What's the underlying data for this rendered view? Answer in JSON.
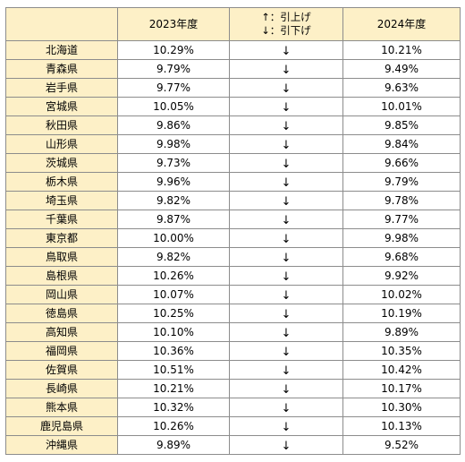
{
  "header": {
    "pref": "",
    "year_2023": "2023年度",
    "direction_up": "↑：引上げ",
    "direction_down": "↓：引下げ",
    "year_2024": "2024年度"
  },
  "rows": [
    {
      "prefecture": "北海道",
      "rate_2023": "10.29%",
      "arrow": "↓",
      "rate_2024": "10.21%"
    },
    {
      "prefecture": "青森県",
      "rate_2023": "9.79%",
      "arrow": "↓",
      "rate_2024": "9.49%"
    },
    {
      "prefecture": "岩手県",
      "rate_2023": "9.77%",
      "arrow": "↓",
      "rate_2024": "9.63%"
    },
    {
      "prefecture": "宮城県",
      "rate_2023": "10.05%",
      "arrow": "↓",
      "rate_2024": "10.01%"
    },
    {
      "prefecture": "秋田県",
      "rate_2023": "9.86%",
      "arrow": "↓",
      "rate_2024": "9.85%"
    },
    {
      "prefecture": "山形県",
      "rate_2023": "9.98%",
      "arrow": "↓",
      "rate_2024": "9.84%"
    },
    {
      "prefecture": "茨城県",
      "rate_2023": "9.73%",
      "arrow": "↓",
      "rate_2024": "9.66%"
    },
    {
      "prefecture": "栃木県",
      "rate_2023": "9.96%",
      "arrow": "↓",
      "rate_2024": "9.79%"
    },
    {
      "prefecture": "埼玉県",
      "rate_2023": "9.82%",
      "arrow": "↓",
      "rate_2024": "9.78%"
    },
    {
      "prefecture": "千葉県",
      "rate_2023": "9.87%",
      "arrow": "↓",
      "rate_2024": "9.77%"
    },
    {
      "prefecture": "東京都",
      "rate_2023": "10.00%",
      "arrow": "↓",
      "rate_2024": "9.98%"
    },
    {
      "prefecture": "鳥取県",
      "rate_2023": "9.82%",
      "arrow": "↓",
      "rate_2024": "9.68%"
    },
    {
      "prefecture": "島根県",
      "rate_2023": "10.26%",
      "arrow": "↓",
      "rate_2024": "9.92%"
    },
    {
      "prefecture": "岡山県",
      "rate_2023": "10.07%",
      "arrow": "↓",
      "rate_2024": "10.02%"
    },
    {
      "prefecture": "徳島県",
      "rate_2023": "10.25%",
      "arrow": "↓",
      "rate_2024": "10.19%"
    },
    {
      "prefecture": "高知県",
      "rate_2023": "10.10%",
      "arrow": "↓",
      "rate_2024": "9.89%"
    },
    {
      "prefecture": "福岡県",
      "rate_2023": "10.36%",
      "arrow": "↓",
      "rate_2024": "10.35%"
    },
    {
      "prefecture": "佐賀県",
      "rate_2023": "10.51%",
      "arrow": "↓",
      "rate_2024": "10.42%"
    },
    {
      "prefecture": "長崎県",
      "rate_2023": "10.21%",
      "arrow": "↓",
      "rate_2024": "10.17%"
    },
    {
      "prefecture": "熊本県",
      "rate_2023": "10.32%",
      "arrow": "↓",
      "rate_2024": "10.30%"
    },
    {
      "prefecture": "鹿児島県",
      "rate_2023": "10.26%",
      "arrow": "↓",
      "rate_2024": "10.13%"
    },
    {
      "prefecture": "沖縄県",
      "rate_2023": "9.89%",
      "arrow": "↓",
      "rate_2024": "9.52%"
    }
  ],
  "colors": {
    "header_fill": "#fdf0c7",
    "border": "#8c8c8c"
  }
}
